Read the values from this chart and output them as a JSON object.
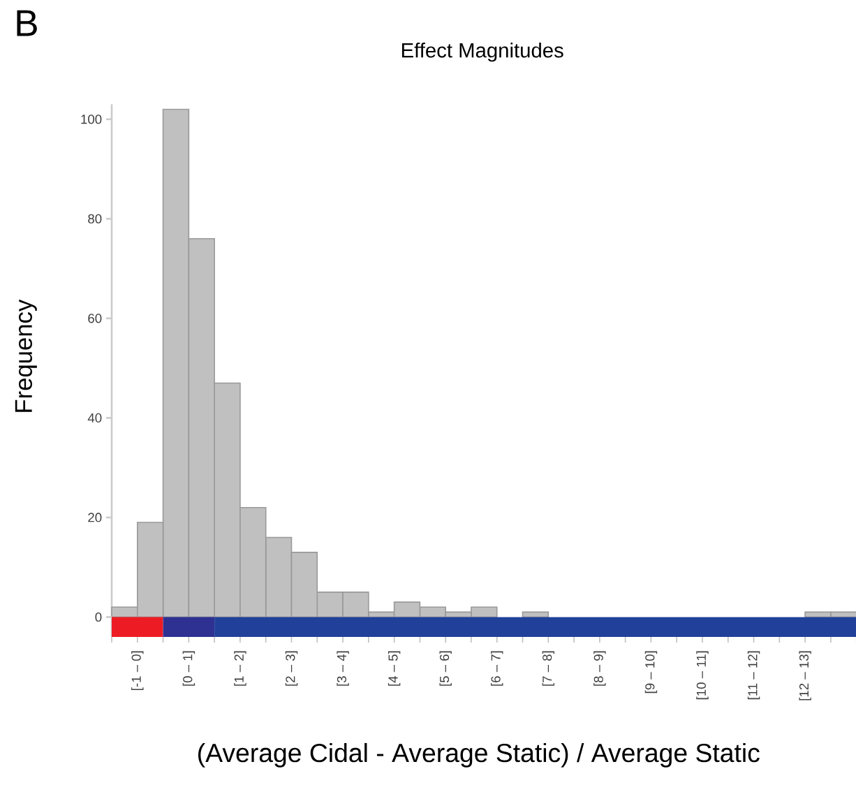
{
  "chart_data": {
    "type": "bar",
    "title": "Effect Magnitudes",
    "xlabel": "(Average Cidal - Average Static) / Average Static",
    "ylabel": "Frequency",
    "categories": [
      "[-1 – 0]",
      "[0 – 1]",
      "[1 – 2]",
      "[2 – 3]",
      "[3 – 4]",
      "[4 – 5]",
      "[5 – 6]",
      "[6 – 7]",
      "[7 – 8]",
      "[8 – 9]",
      "[9 – 10]",
      "[10 – 11]",
      "[11 – 12]",
      "[12 – 13]",
      null
    ],
    "series": [
      {
        "color": "#c0c0c0",
        "values": [
          2,
          102,
          47,
          16,
          5,
          1,
          2,
          2,
          1,
          0,
          0,
          0,
          0,
          0,
          1
        ]
      },
      {
        "color": "#c0c0c0",
        "values": [
          19,
          76,
          22,
          13,
          5,
          3,
          1,
          0,
          0,
          0,
          0,
          0,
          0,
          1,
          null
        ]
      }
    ],
    "ylim": [
      -4,
      103
    ],
    "yticks": [
      0,
      20,
      40,
      60,
      80,
      100
    ],
    "annotations": [
      "B"
    ]
  }
}
